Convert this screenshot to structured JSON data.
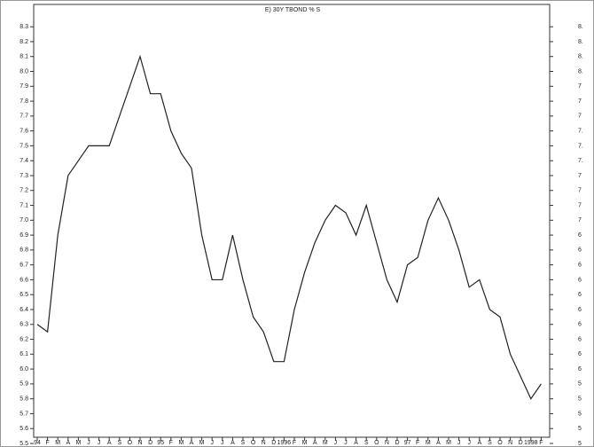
{
  "chart_data": {
    "type": "line",
    "title": "E) 30Y TBOND % S",
    "categories": [
      "94",
      "F",
      "M",
      "A",
      "M",
      "J",
      "J",
      "A",
      "S",
      "O",
      "N",
      "D",
      "95",
      "F",
      "M",
      "A",
      "M",
      "J",
      "J",
      "A",
      "S",
      "O",
      "N",
      "D",
      "1996",
      "F",
      "M",
      "A",
      "M",
      "J",
      "J",
      "A",
      "S",
      "O",
      "N",
      "D",
      "97",
      "F",
      "M",
      "A",
      "M",
      "J",
      "J",
      "A",
      "S",
      "O",
      "N",
      "D",
      "1998",
      "F"
    ],
    "series": [
      {
        "name": "30Y TBOND",
        "color": "#222222",
        "values": [
          6.3,
          6.25,
          6.9,
          7.3,
          7.4,
          7.5,
          7.5,
          7.5,
          7.7,
          7.9,
          8.1,
          7.85,
          7.85,
          7.6,
          7.45,
          7.35,
          6.9,
          6.6,
          6.6,
          6.9,
          6.6,
          6.35,
          6.25,
          6.05,
          6.05,
          6.4,
          6.65,
          6.85,
          7.0,
          7.1,
          7.05,
          6.9,
          7.1,
          6.85,
          6.6,
          6.45,
          6.7,
          6.75,
          7.0,
          7.15,
          7.0,
          6.8,
          6.55,
          6.6,
          6.4,
          6.35,
          6.1,
          5.95,
          5.8,
          5.9
        ]
      }
    ],
    "ylim": [
      5.5,
      8.45
    ],
    "yticks": [
      5.5,
      5.6,
      5.7,
      5.8,
      5.9,
      {
        "value": 6.0,
        "label": "6.0"
      },
      6.1,
      6.2,
      6.3,
      6.4,
      6.5,
      6.6,
      6.7,
      6.8,
      6.9,
      {
        "value": 7.0,
        "label": "7.0"
      },
      7.1,
      7.2,
      7.3,
      7.4,
      7.5,
      7.6,
      7.7,
      7.8,
      7.9,
      {
        "value": 8.0,
        "label": "8.0"
      },
      8.1,
      8.2,
      8.3
    ],
    "right_tick_labels": [
      "5",
      "5",
      "5",
      "5",
      "5",
      "6",
      "6",
      "6",
      "6",
      "6",
      "6",
      "6",
      "6",
      "6",
      "6",
      "7",
      "7",
      "7",
      "7",
      "7.",
      "7.",
      "7.",
      "7",
      "7",
      "7",
      "8.",
      "8.",
      "8.",
      "8."
    ]
  }
}
